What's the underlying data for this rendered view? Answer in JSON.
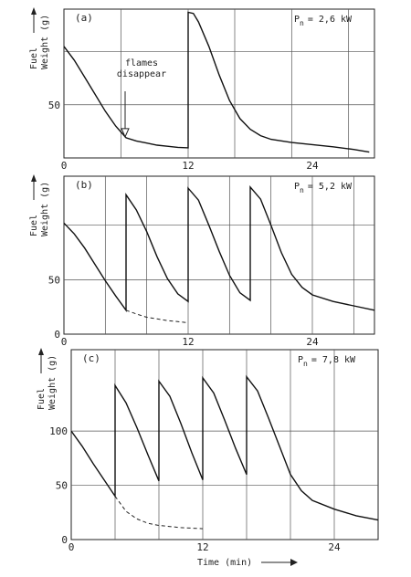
{
  "chart_data": [
    {
      "type": "line",
      "panel_label": "(a)",
      "power_label": {
        "symbol": "P",
        "subscript": "n",
        "value": "= 2,6 kW"
      },
      "ylabel_lines": [
        "Fuel",
        "Weight (g)"
      ],
      "xlim": [
        0,
        30
      ],
      "ylim": [
        0,
        140
      ],
      "x_ticks": [
        {
          "v": 0,
          "label": "0"
        },
        {
          "v": 12,
          "label": "12"
        },
        {
          "v": 24,
          "label": "24"
        }
      ],
      "y_ticks": [
        {
          "v": 50,
          "label": "50"
        }
      ],
      "x_grid": [
        5.5,
        12,
        16.5,
        22,
        27.5
      ],
      "y_grid": [
        50,
        100
      ],
      "annotation": {
        "lines": [
          "flames",
          "disappear"
        ],
        "x": 6,
        "y": 19
      },
      "series": [
        {
          "style": "solid",
          "points": [
            [
              0,
              105
            ],
            [
              1,
              92
            ],
            [
              2,
              76
            ],
            [
              3,
              60
            ],
            [
              4,
              44
            ],
            [
              5,
              30
            ],
            [
              6,
              19
            ],
            [
              7,
              16
            ],
            [
              8,
              14
            ],
            [
              9,
              12
            ],
            [
              10,
              11
            ],
            [
              11,
              10
            ],
            [
              12,
              9.5
            ],
            [
              12,
              137
            ],
            [
              12.5,
              136
            ],
            [
              13,
              128
            ],
            [
              14,
              105
            ],
            [
              15,
              78
            ],
            [
              16,
              54
            ],
            [
              17,
              37
            ],
            [
              18,
              27
            ],
            [
              19,
              21
            ],
            [
              20,
              17.5
            ],
            [
              22,
              14.5
            ],
            [
              24,
              12.5
            ],
            [
              26,
              10.5
            ],
            [
              28,
              8
            ],
            [
              29.5,
              5.5
            ]
          ]
        }
      ]
    },
    {
      "type": "line",
      "panel_label": "(b)",
      "power_label": {
        "symbol": "P",
        "subscript": "n",
        "value": "= 5,2 kW"
      },
      "ylabel_lines": [
        "Fuel",
        "Weight (g)"
      ],
      "xlim": [
        0,
        30
      ],
      "ylim": [
        0,
        145
      ],
      "x_ticks": [
        {
          "v": 0,
          "label": "0"
        },
        {
          "v": 12,
          "label": "12"
        },
        {
          "v": 24,
          "label": "24"
        }
      ],
      "y_ticks": [
        {
          "v": 0,
          "label": "0"
        },
        {
          "v": 50,
          "label": "50"
        }
      ],
      "x_grid": [
        4,
        8,
        12,
        16,
        20,
        24,
        28
      ],
      "y_grid": [
        50,
        100
      ],
      "series": [
        {
          "style": "solid",
          "points": [
            [
              0,
              102
            ],
            [
              1,
              92
            ],
            [
              2,
              79
            ],
            [
              3,
              64
            ],
            [
              4,
              49
            ],
            [
              5,
              35
            ],
            [
              6,
              22
            ],
            [
              6,
              128
            ],
            [
              7,
              114
            ],
            [
              8,
              94
            ],
            [
              9,
              71
            ],
            [
              10,
              51
            ],
            [
              11,
              37
            ],
            [
              12,
              30
            ],
            [
              12,
              134
            ],
            [
              13,
              123
            ],
            [
              14,
              100
            ],
            [
              15,
              76
            ],
            [
              16,
              54
            ],
            [
              17,
              38
            ],
            [
              18,
              31
            ],
            [
              18,
              135
            ],
            [
              19,
              124
            ],
            [
              20,
              100
            ],
            [
              21,
              75
            ],
            [
              22,
              55
            ],
            [
              23,
              43
            ],
            [
              24,
              36
            ],
            [
              26,
              30
            ],
            [
              28,
              26
            ],
            [
              30,
              22
            ]
          ]
        },
        {
          "style": "dashed",
          "points": [
            [
              6,
              22
            ],
            [
              7,
              18.5
            ],
            [
              8,
              15.5
            ],
            [
              9,
              14
            ],
            [
              10,
              12.5
            ],
            [
              11,
              11.5
            ],
            [
              12,
              10.5
            ]
          ]
        }
      ]
    },
    {
      "type": "line",
      "panel_label": "(c)",
      "power_label": {
        "symbol": "P",
        "subscript": "n",
        "value": "= 7,8 kW"
      },
      "ylabel_lines": [
        "Fuel",
        "Weight (g)"
      ],
      "xlabel": "Time (min)",
      "xlim": [
        0,
        28
      ],
      "ylim": [
        0,
        175
      ],
      "x_ticks": [
        {
          "v": 0,
          "label": "0"
        },
        {
          "v": 12,
          "label": "12"
        },
        {
          "v": 24,
          "label": "24"
        }
      ],
      "y_ticks": [
        {
          "v": 0,
          "label": "0"
        },
        {
          "v": 50,
          "label": "50"
        },
        {
          "v": 100,
          "label": "100"
        }
      ],
      "x_grid": [
        4,
        8,
        12,
        16,
        20,
        24
      ],
      "y_grid": [
        50,
        100
      ],
      "series": [
        {
          "style": "solid",
          "points": [
            [
              0,
              100
            ],
            [
              1,
              86
            ],
            [
              2,
              70
            ],
            [
              3,
              55
            ],
            [
              4,
              40
            ],
            [
              4,
              142
            ],
            [
              5,
              126
            ],
            [
              6,
              103
            ],
            [
              7,
              78
            ],
            [
              8,
              54
            ],
            [
              8,
              146
            ],
            [
              9,
              132
            ],
            [
              10,
              107
            ],
            [
              11,
              80
            ],
            [
              12,
              55
            ],
            [
              12,
              149
            ],
            [
              13,
              135
            ],
            [
              14,
              110
            ],
            [
              15,
              84
            ],
            [
              16,
              60
            ],
            [
              16,
              150
            ],
            [
              17,
              137
            ],
            [
              18,
              112
            ],
            [
              19,
              86
            ],
            [
              20,
              60
            ],
            [
              21,
              45
            ],
            [
              22,
              36
            ],
            [
              24,
              28
            ],
            [
              26,
              22
            ],
            [
              28,
              18
            ]
          ]
        },
        {
          "style": "dashed",
          "points": [
            [
              4,
              40
            ],
            [
              5,
              26
            ],
            [
              6,
              19
            ],
            [
              7,
              15
            ],
            [
              8,
              13
            ],
            [
              9,
              12
            ],
            [
              10,
              11
            ],
            [
              11,
              10.5
            ],
            [
              12,
              10
            ]
          ]
        }
      ]
    }
  ]
}
